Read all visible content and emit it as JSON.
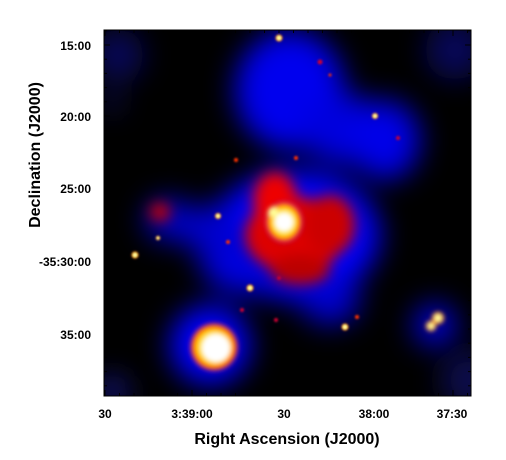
{
  "chart_data": {
    "type": "heatmap",
    "title": "",
    "xlabel": "Right Ascension (J2000)",
    "ylabel": "Declination (J2000)",
    "x_ticks": [
      "30",
      "3:39:00",
      "30",
      "38:00",
      "37:30"
    ],
    "y_ticks": [
      "15:00",
      "20:00",
      "25:00",
      "-35:30:00",
      "35:00"
    ],
    "grid": false,
    "colormap": [
      "#000000",
      "#0000ff",
      "#ff0000",
      "#ffff00",
      "#ffffff"
    ]
  }
}
